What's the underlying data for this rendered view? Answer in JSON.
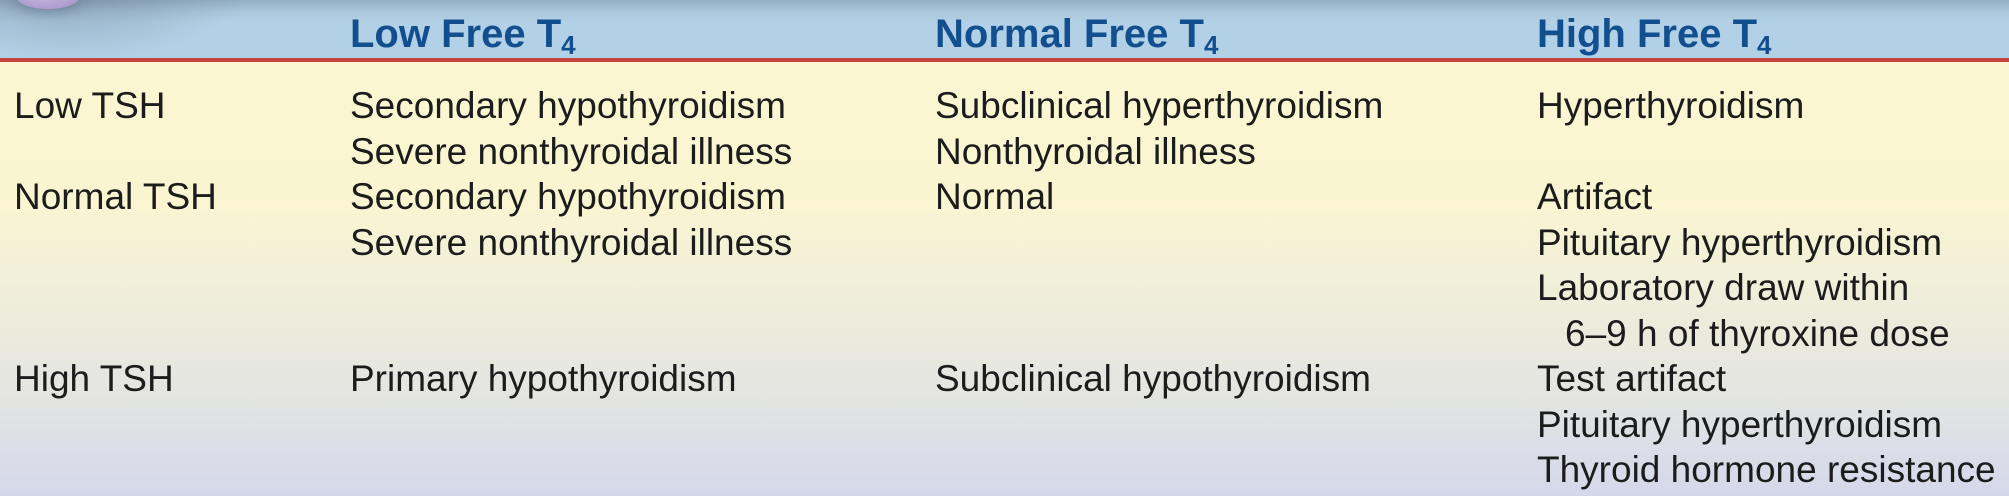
{
  "table": {
    "columns": [
      {
        "label": "Low Free T",
        "sub": "4"
      },
      {
        "label": "Normal Free T",
        "sub": "4"
      },
      {
        "label": "High Free T",
        "sub": "4"
      }
    ],
    "rows": [
      {
        "label": "Low TSH",
        "cells": [
          {
            "lines": [
              "Secondary hypothyroidism",
              "Severe nonthyroidal illness"
            ]
          },
          {
            "lines": [
              "Subclinical hyperthyroidism",
              "Nonthyroidal illness"
            ]
          },
          {
            "lines": [
              "Hyperthyroidism"
            ]
          }
        ]
      },
      {
        "label": "Normal TSH",
        "cells": [
          {
            "lines": [
              "Secondary hypothyroidism",
              "Severe nonthyroidal illness"
            ]
          },
          {
            "lines": [
              "Normal"
            ]
          },
          {
            "lines": [
              "Artifact",
              "Pituitary hyperthyroidism",
              "Laboratory draw within",
              "6–9 h of thyroxine dose"
            ]
          }
        ]
      },
      {
        "label": "High TSH",
        "cells": [
          {
            "lines": [
              "Primary hypothyroidism"
            ]
          },
          {
            "lines": [
              "Subclinical hypothyroidism"
            ]
          },
          {
            "lines": [
              "Test artifact",
              "Pituitary hyperthyroidism",
              "Thyroid hormone resistance"
            ]
          }
        ]
      }
    ]
  },
  "colors": {
    "header_band": "#b3d1e6",
    "header_text": "#124f8e",
    "divider": "#c5443d",
    "body_text": "#1c1c1c",
    "body_top": "#fbf6d2",
    "body_bottom": "#d4d8e9",
    "corner_ellipse": "#b3a1d1"
  }
}
